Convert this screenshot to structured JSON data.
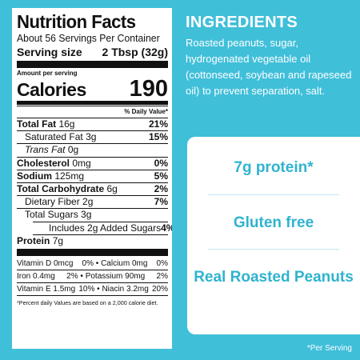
{
  "nutrition": {
    "title": "Nutrition Facts",
    "servings_per_container": "About 56 Servings Per Container",
    "serving_size_label": "Serving size",
    "serving_size_value": "2 Tbsp (32g)",
    "amount_per_serving": "Amount per serving",
    "calories_label": "Calories",
    "calories_value": "190",
    "daily_value_header": "% Daily Value*",
    "rows": [
      {
        "name": "Total Fat",
        "amount": "16g",
        "dv": "21%"
      },
      {
        "name": "Saturated Fat",
        "amount": "3g",
        "dv": "15%"
      },
      {
        "name": "Trans Fat",
        "amount": "0g",
        "dv": ""
      },
      {
        "name": "Cholesterol",
        "amount": "0mg",
        "dv": "0%"
      },
      {
        "name": "Sodium",
        "amount": "125mg",
        "dv": "5%"
      },
      {
        "name": "Total Carbohydrate",
        "amount": "6g",
        "dv": "2%"
      },
      {
        "name": "Dietary Fiber",
        "amount": "2g",
        "dv": "7%"
      },
      {
        "name": "Total Sugars",
        "amount": "3g",
        "dv": ""
      },
      {
        "name": "Includes 2g Added Sugars",
        "amount": "",
        "dv": "4%"
      },
      {
        "name": "Protein",
        "amount": "7g",
        "dv": ""
      }
    ],
    "vitamins": [
      [
        {
          "name": "Vitamin D 0mcg",
          "dv": "0%"
        },
        {
          "name": "Calcium 0mg",
          "dv": "0%"
        }
      ],
      [
        {
          "name": "Iron 0.4mg",
          "dv": "2%"
        },
        {
          "name": "Potassium 90mg",
          "dv": "2%"
        }
      ],
      [
        {
          "name": "Vitamin E 1.5mg",
          "dv": "10%"
        },
        {
          "name": "Niacin 3.2mg",
          "dv": "20%"
        }
      ]
    ],
    "separator": "•",
    "footnote": "*Percent daily Values are based on a 2,000 calorie diet."
  },
  "ingredients": {
    "title": "INGREDIENTS",
    "text": "Roasted peanuts, sugar, hydrogenated vegetable oil (cottonseed, soybean and rapeseed oil) to prevent separation, salt."
  },
  "claims": [
    "7g protein*",
    "Gluten free",
    "Real Roasted Peanuts"
  ],
  "footnote_right": "*Per Serving",
  "colors": {
    "background": "#40bfd9",
    "claim_text": "#2fb3cf"
  }
}
